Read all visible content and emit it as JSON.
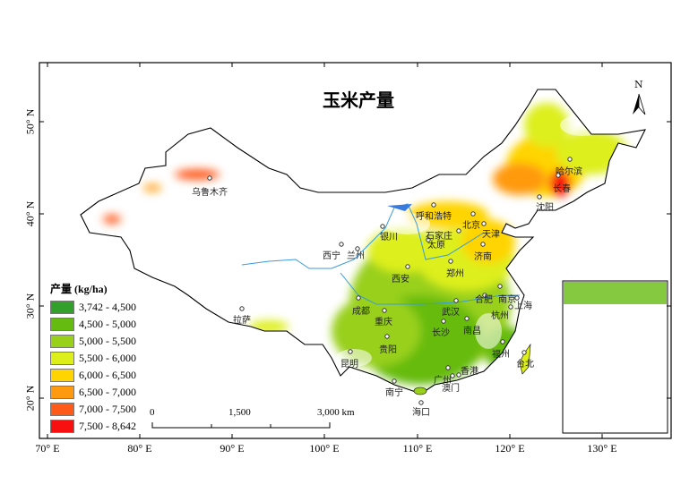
{
  "title": "玉米产量",
  "north_arrow": "N",
  "legend": {
    "title": "产量 (kg/ha)",
    "classes": [
      {
        "label": "3,742 - 4,500",
        "color": "#33a02c"
      },
      {
        "label": "4,500 - 5,000",
        "color": "#66bb11"
      },
      {
        "label": "5,000 - 5,500",
        "color": "#99d01a"
      },
      {
        "label": "5,500 - 6,000",
        "color": "#ddef1a"
      },
      {
        "label": "6,000 - 6,500",
        "color": "#ffd400"
      },
      {
        "label": "6,500 - 7,000",
        "color": "#ff9a10"
      },
      {
        "label": "7,000 - 7,500",
        "color": "#ff5a1a"
      },
      {
        "label": "7,500 - 8,642",
        "color": "#f80f0f"
      }
    ]
  },
  "axes": {
    "x_ticks": [
      "70° E",
      "80° E",
      "90° E",
      "100° E",
      "110° E",
      "120° E",
      "130° E"
    ],
    "y_ticks": [
      "50° N",
      "40° N",
      "30° N",
      "20° N"
    ]
  },
  "scale_bar": {
    "labels": [
      "0",
      "1,500",
      "3,000 km"
    ]
  },
  "river_color": "#3a9bdc",
  "cities": [
    "乌鲁木齐",
    "拉萨",
    "西宁",
    "兰州",
    "银川",
    "呼和浩特",
    "北京",
    "天津",
    "石家庄",
    "太原",
    "济南",
    "郑州",
    "西安",
    "成都",
    "重庆",
    "武汉",
    "合肥",
    "南京",
    "上海",
    "杭州",
    "长沙",
    "南昌",
    "贵阳",
    "昆明",
    "福州",
    "台北",
    "广州",
    "香港",
    "澳门",
    "南宁",
    "海口",
    "沈阳",
    "长春",
    "哈尔滨"
  ]
}
